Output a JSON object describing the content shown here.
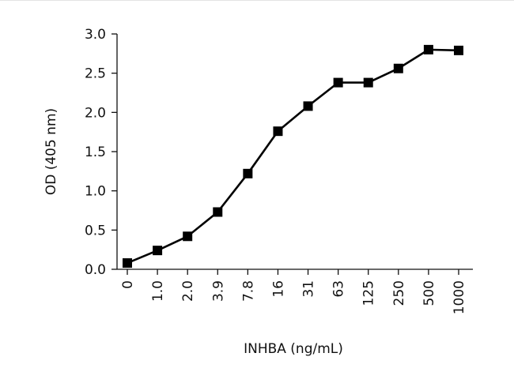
{
  "chart_data": {
    "type": "line",
    "title": "",
    "xlabel": "INHBA (ng/mL)",
    "ylabel": "OD (405 nm)",
    "categories": [
      "0",
      "1.0",
      "2.0",
      "3.9",
      "7.8",
      "16",
      "31",
      "63",
      "125",
      "250",
      "500",
      "1000"
    ],
    "series": [
      {
        "values": [
          0.08,
          0.24,
          0.42,
          0.73,
          1.22,
          1.76,
          2.08,
          2.38,
          2.38,
          2.56,
          2.8,
          2.79
        ],
        "color": "#000000",
        "marker": "square"
      }
    ],
    "ylim": [
      0.0,
      3.0
    ],
    "yticks": [
      "0.0",
      "0.5",
      "1.0",
      "1.5",
      "2.0",
      "2.5",
      "3.0"
    ],
    "grid": false,
    "legend": "none"
  }
}
